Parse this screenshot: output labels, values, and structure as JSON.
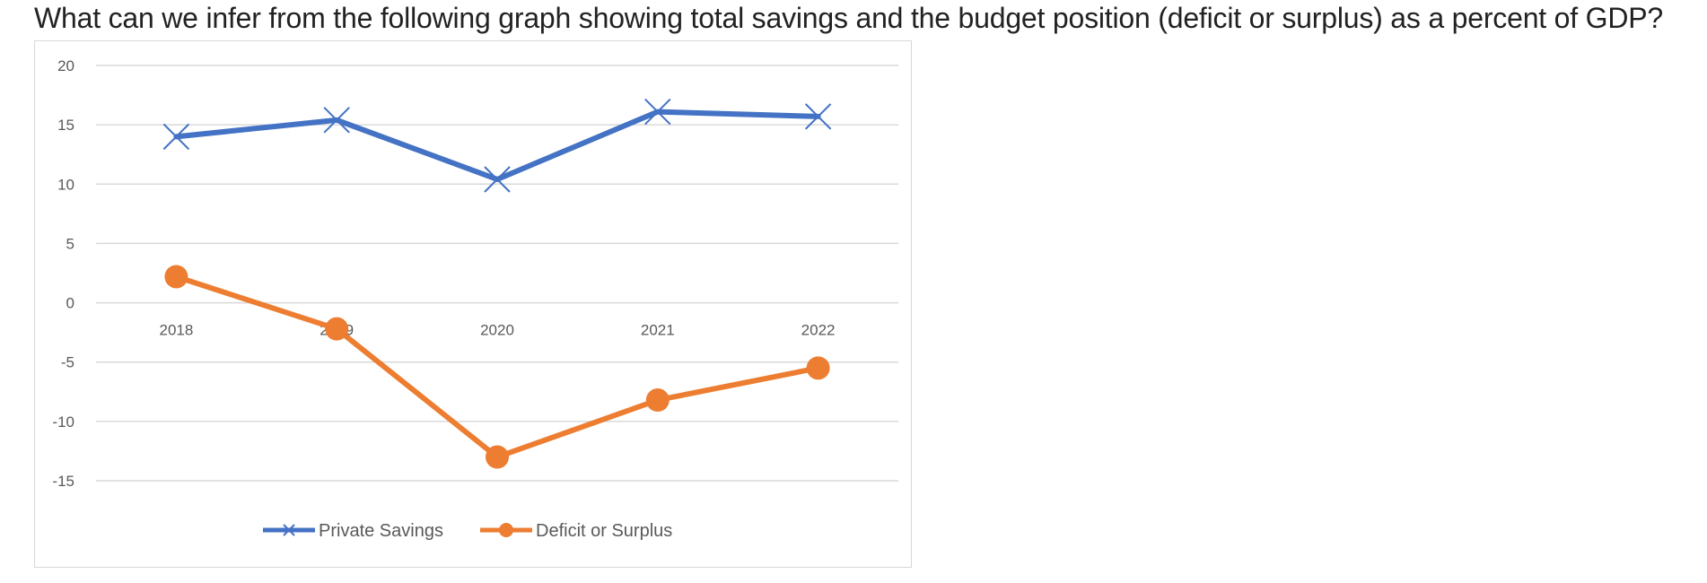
{
  "question": {
    "text": "What can we infer from the following graph showing total savings and the budget position (deficit or surplus) as a percent of GDP?"
  },
  "chart_data": {
    "type": "line",
    "title": "",
    "xlabel": "",
    "ylabel": "",
    "categories": [
      "2018",
      "2019",
      "2020",
      "2021",
      "2022"
    ],
    "ylim": [
      -15,
      20
    ],
    "yticks": [
      20,
      15,
      10,
      5,
      0,
      -5,
      -10,
      -15
    ],
    "grid": true,
    "legend_position": "bottom",
    "series": [
      {
        "name": "Private Savings",
        "values": [
          14,
          15.4,
          10.4,
          16.1,
          15.7
        ],
        "color": "#4472c4",
        "marker": "x"
      },
      {
        "name": "Deficit or Surplus",
        "values": [
          2.2,
          -2.2,
          -13,
          -8.2,
          -5.5
        ],
        "color": "#ed7d31",
        "marker": "circle"
      }
    ]
  }
}
